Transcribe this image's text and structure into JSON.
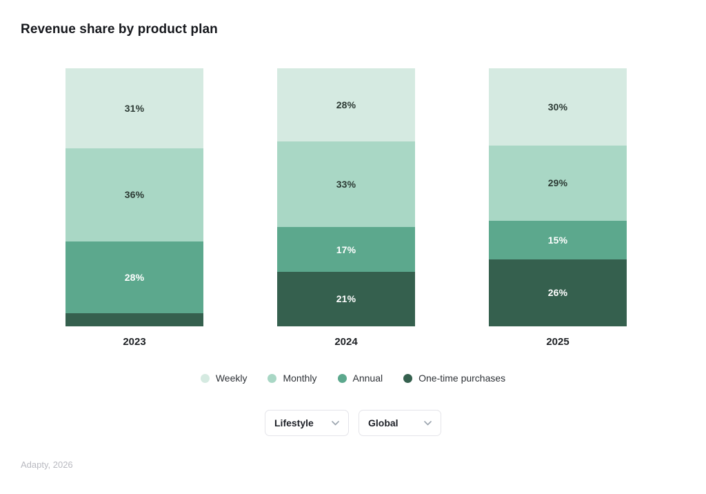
{
  "page": {
    "title": "Revenue share by product plan",
    "footer": "Adapty, 2026"
  },
  "chart_data": {
    "type": "bar",
    "variant": "stacked-percentage",
    "title": "Revenue share by product plan",
    "categories": [
      "2023",
      "2024",
      "2025"
    ],
    "stack_order": "top-to-bottom",
    "series": [
      {
        "name": "Weekly",
        "color": "#d5eae1",
        "label_color": "#2c3a34",
        "values": [
          31,
          28,
          30
        ],
        "data_labels": [
          "31%",
          "28%",
          "30%"
        ]
      },
      {
        "name": "Monthly",
        "color": "#a9d7c5",
        "label_color": "#2c3a34",
        "values": [
          36,
          33,
          29
        ],
        "data_labels": [
          "36%",
          "33%",
          "29%"
        ]
      },
      {
        "name": "Annual",
        "color": "#5ca88d",
        "label_color": "#ffffff",
        "values": [
          28,
          17,
          15
        ],
        "data_labels": [
          "28%",
          "17%",
          "15%"
        ]
      },
      {
        "name": "One-time purchases",
        "color": "#35604e",
        "label_color": "#ffffff",
        "values": [
          5,
          21,
          26
        ],
        "data_labels": [
          null,
          "21%",
          "26%"
        ]
      }
    ],
    "legend": [
      "Weekly",
      "Monthly",
      "Annual",
      "One-time purchases"
    ],
    "legend_position": "bottom",
    "grid": false,
    "axes_shown": false
  },
  "controls": {
    "plan_dropdown": {
      "value": "Lifestyle",
      "icon": "chevron-down"
    },
    "region_dropdown": {
      "value": "Global",
      "icon": "chevron-down"
    }
  }
}
